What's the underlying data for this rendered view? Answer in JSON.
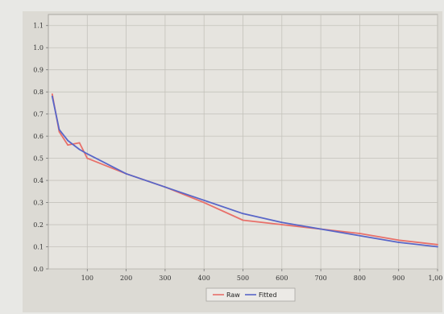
{
  "chart_data": {
    "type": "line",
    "title": "",
    "xlabel": "",
    "ylabel": "",
    "xlim": [
      0,
      1000
    ],
    "ylim": [
      0,
      1.15
    ],
    "x_ticks": [
      "100",
      "200",
      "300",
      "400",
      "500",
      "600",
      "700",
      "800",
      "900",
      "1,000"
    ],
    "y_ticks": [
      "0.0",
      "0.1",
      "0.2",
      "0.3",
      "0.4",
      "0.5",
      "0.6",
      "0.7",
      "0.8",
      "0.9",
      "1.0",
      "1.1"
    ],
    "grid": true,
    "legend_position": "bottom-right",
    "series": [
      {
        "name": "Raw",
        "color": "#e8706a",
        "x": [
          10,
          28,
          50,
          80,
          100,
          200,
          300,
          400,
          500,
          600,
          700,
          800,
          900,
          1000
        ],
        "y": [
          0.79,
          0.62,
          0.56,
          0.57,
          0.5,
          0.43,
          0.37,
          0.3,
          0.22,
          0.2,
          0.18,
          0.16,
          0.13,
          0.11
        ]
      },
      {
        "name": "Fitted",
        "color": "#5866c8",
        "x": [
          10,
          28,
          50,
          80,
          100,
          200,
          300,
          400,
          500,
          600,
          700,
          800,
          900,
          1000
        ],
        "y": [
          0.78,
          0.63,
          0.58,
          0.54,
          0.52,
          0.43,
          0.37,
          0.31,
          0.25,
          0.21,
          0.18,
          0.15,
          0.12,
          0.1
        ]
      }
    ]
  }
}
